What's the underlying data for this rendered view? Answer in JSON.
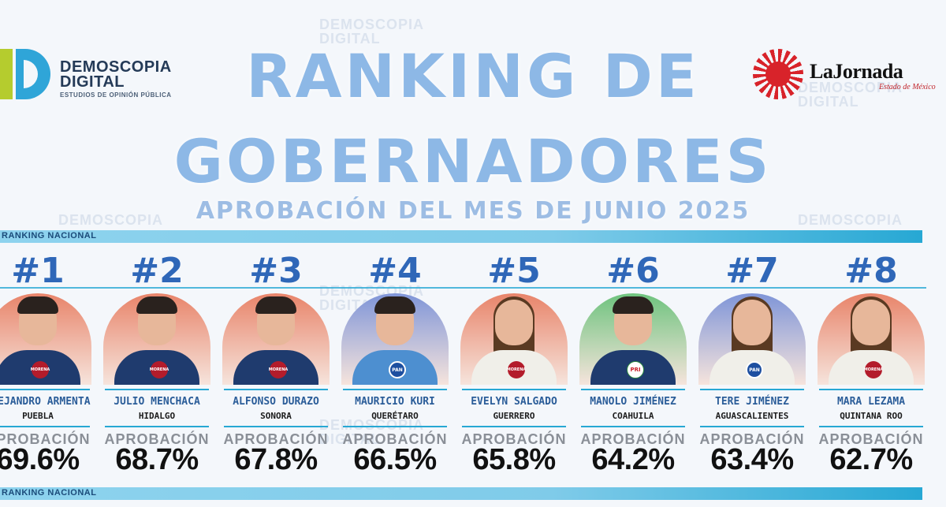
{
  "header": {
    "brand_name_line1": "DEMOSCOPIA",
    "brand_name_line2": "DIGITAL",
    "brand_tagline": "ESTUDIOS DE OPINIÓN PÚBLICA",
    "partner_name": "LaJornada",
    "partner_subtitle": "Estado de México"
  },
  "title": {
    "line1": "RANKING DE",
    "line2": "GOBERNADORES",
    "subtitle": "APROBACIÓN DEL MES DE JUNIO 2025"
  },
  "band_label": "RANKING NACIONAL",
  "band_label_bottom": "RANKING NACIONAL",
  "watermark_text": "DEMOSCOPIA DIGITAL",
  "approval_label": "APROBACIÓN",
  "ranking": [
    {
      "rank": "#1",
      "name": "ALEJANDRO ARMENTA",
      "state": "PUEBLA",
      "approval": "69.6%",
      "party": "MORENA",
      "bg": "#e8846a"
    },
    {
      "rank": "#2",
      "name": "JULIO MENCHACA",
      "state": "HIDALGO",
      "approval": "68.7%",
      "party": "MORENA",
      "bg": "#e8846a"
    },
    {
      "rank": "#3",
      "name": "ALFONSO DURAZO",
      "state": "SONORA",
      "approval": "67.8%",
      "party": "MORENA",
      "bg": "#e8846a"
    },
    {
      "rank": "#4",
      "name": "MAURICIO KURI",
      "state": "QUERÉTARO",
      "approval": "66.5%",
      "party": "PAN",
      "bg": "#7f95d8"
    },
    {
      "rank": "#5",
      "name": "EVELYN SALGADO",
      "state": "GUERRERO",
      "approval": "65.8%",
      "party": "MORENA",
      "bg": "#e8846a"
    },
    {
      "rank": "#6",
      "name": "MANOLO JIMÉNEZ",
      "state": "COAHUILA",
      "approval": "64.2%",
      "party": "PRI",
      "bg": "#6ec37e"
    },
    {
      "rank": "#7",
      "name": "TERE JIMÉNEZ",
      "state": "AGUASCALIENTES",
      "approval": "63.4%",
      "party": "PAN",
      "bg": "#7f95d8"
    },
    {
      "rank": "#8",
      "name": "MARA LEZAMA",
      "state": "QUINTANA ROO",
      "approval": "62.7%",
      "party": "MORENA",
      "bg": "#e8846a"
    }
  ]
}
